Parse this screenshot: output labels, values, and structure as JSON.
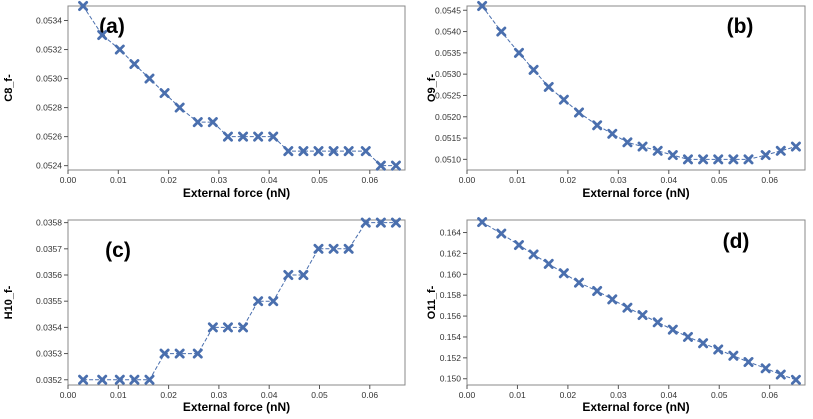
{
  "chart_data": [
    {
      "type": "line",
      "panel": "(a)",
      "xlabel": "External force (nN)",
      "ylabel": "C8_f-",
      "xlim": [
        0.0,
        0.067
      ],
      "ylim": [
        0.05237,
        0.0535
      ],
      "xticks": [
        "0.00",
        "0.01",
        "0.02",
        "0.03",
        "0.04",
        "0.05",
        "0.06"
      ],
      "yticks": [
        "0.0524",
        "0.0526",
        "0.0528",
        "0.0530",
        "0.0532",
        "0.0534"
      ],
      "x": [
        0.003,
        0.0068,
        0.0103,
        0.0132,
        0.0162,
        0.0192,
        0.0222,
        0.0258,
        0.0288,
        0.0318,
        0.0348,
        0.0378,
        0.0408,
        0.0438,
        0.0468,
        0.0498,
        0.0528,
        0.0558,
        0.0592,
        0.0622,
        0.0652
      ],
      "values": [
        0.0535,
        0.0533,
        0.0532,
        0.0531,
        0.053,
        0.0529,
        0.0528,
        0.0527,
        0.0527,
        0.0526,
        0.0526,
        0.0526,
        0.0526,
        0.0525,
        0.0525,
        0.0525,
        0.0525,
        0.0525,
        0.0525,
        0.0524,
        0.0524
      ]
    },
    {
      "type": "line",
      "panel": "(b)",
      "xlabel": "External force (nN)",
      "ylabel": "O9_f-",
      "xlim": [
        0.0,
        0.067
      ],
      "ylim": [
        0.05075,
        0.0546
      ],
      "xticks": [
        "0.00",
        "0.01",
        "0.02",
        "0.03",
        "0.04",
        "0.05",
        "0.06"
      ],
      "yticks": [
        "0.0510",
        "0.0515",
        "0.0520",
        "0.0525",
        "0.0530",
        "0.0535",
        "0.0540",
        "0.0545"
      ],
      "x": [
        0.003,
        0.0068,
        0.0103,
        0.0132,
        0.0162,
        0.0192,
        0.0222,
        0.0258,
        0.0288,
        0.0318,
        0.0348,
        0.0378,
        0.0408,
        0.0438,
        0.0468,
        0.0498,
        0.0528,
        0.0558,
        0.0592,
        0.0622,
        0.0652
      ],
      "values": [
        0.0546,
        0.054,
        0.0535,
        0.0531,
        0.0527,
        0.0524,
        0.0521,
        0.0518,
        0.0516,
        0.0514,
        0.0513,
        0.0512,
        0.0511,
        0.051,
        0.051,
        0.051,
        0.051,
        0.051,
        0.0511,
        0.0512,
        0.0513
      ]
    },
    {
      "type": "line",
      "panel": "(c)",
      "xlabel": "External force (nN)",
      "ylabel": "H10_f-",
      "xlim": [
        0.0,
        0.067
      ],
      "ylim": [
        0.03518,
        0.03581
      ],
      "xticks": [
        "0.00",
        "0.01",
        "0.02",
        "0.03",
        "0.04",
        "0.05",
        "0.06"
      ],
      "yticks": [
        "0.0352",
        "0.0353",
        "0.0354",
        "0.0355",
        "0.0356",
        "0.0357",
        "0.0358"
      ],
      "x": [
        0.003,
        0.0068,
        0.0103,
        0.0132,
        0.0162,
        0.0192,
        0.0222,
        0.0258,
        0.0288,
        0.0318,
        0.0348,
        0.0378,
        0.0408,
        0.0438,
        0.0468,
        0.0498,
        0.0528,
        0.0558,
        0.0592,
        0.0622,
        0.0652
      ],
      "values": [
        0.0352,
        0.0352,
        0.0352,
        0.0352,
        0.0352,
        0.0353,
        0.0353,
        0.0353,
        0.0354,
        0.0354,
        0.0354,
        0.0355,
        0.0355,
        0.0356,
        0.0356,
        0.0357,
        0.0357,
        0.0357,
        0.0358,
        0.0358,
        0.0358
      ]
    },
    {
      "type": "line",
      "panel": "(d)",
      "xlabel": "External force (nN)",
      "ylabel": "O11_f-",
      "xlim": [
        0.0,
        0.067
      ],
      "ylim": [
        0.1494,
        0.1652
      ],
      "xticks": [
        "0.00",
        "0.01",
        "0.02",
        "0.03",
        "0.04",
        "0.05",
        "0.06"
      ],
      "yticks": [
        "0.150",
        "0.152",
        "0.154",
        "0.156",
        "0.158",
        "0.160",
        "0.162",
        "0.164"
      ],
      "x": [
        0.003,
        0.0068,
        0.0103,
        0.0132,
        0.0162,
        0.0192,
        0.0222,
        0.0258,
        0.0288,
        0.0318,
        0.0348,
        0.0378,
        0.0408,
        0.0438,
        0.0468,
        0.0498,
        0.0528,
        0.0558,
        0.0592,
        0.0622,
        0.0652
      ],
      "values": [
        0.165,
        0.1639,
        0.1628,
        0.1619,
        0.161,
        0.1601,
        0.1592,
        0.1584,
        0.1576,
        0.1568,
        0.1561,
        0.1554,
        0.1547,
        0.154,
        0.1534,
        0.1528,
        0.1522,
        0.1516,
        0.151,
        0.1504,
        0.1499
      ]
    }
  ],
  "style": {
    "line_color": "#4a6fae",
    "marker_color": "#4a6fae",
    "frame_color": "#888888"
  }
}
